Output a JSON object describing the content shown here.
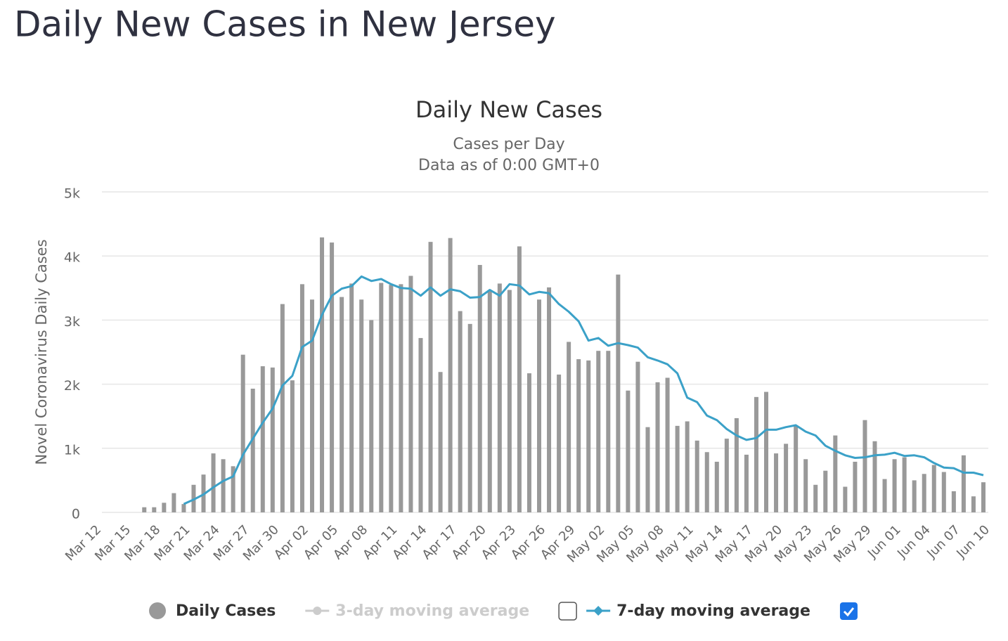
{
  "page_title": "Daily New Cases in New Jersey",
  "chart_data": {
    "type": "bar",
    "title": "Daily New Cases",
    "subtitle": [
      "Cases per Day",
      "Data as of 0:00 GMT+0"
    ],
    "y_label": "Novel Coronavirus Daily Cases",
    "categories": [
      "Mar 12",
      null,
      null,
      "Mar 15",
      null,
      null,
      "Mar 18",
      null,
      null,
      "Mar 21",
      null,
      null,
      "Mar 24",
      null,
      null,
      "Mar 27",
      null,
      null,
      "Mar 30",
      null,
      null,
      "Apr 02",
      null,
      null,
      "Apr 05",
      null,
      null,
      "Apr 08",
      null,
      null,
      "Apr 11",
      null,
      null,
      "Apr 14",
      null,
      null,
      "Apr 17",
      null,
      null,
      "Apr 20",
      null,
      null,
      "Apr 23",
      null,
      null,
      "Apr 26",
      null,
      null,
      "Apr 29",
      null,
      null,
      "May 02",
      null,
      null,
      "May 05",
      null,
      null,
      "May 08",
      null,
      null,
      "May 11",
      null,
      null,
      "May 14",
      null,
      null,
      "May 17",
      null,
      null,
      "May 20",
      null,
      null,
      "May 23",
      null,
      null,
      "May 26",
      null,
      null,
      "May 29",
      null,
      null,
      "Jun 01",
      null,
      null,
      "Jun 04",
      null,
      null,
      "Jun 07",
      null,
      null,
      "Jun 10"
    ],
    "series": [
      {
        "name": "Daily Cases",
        "type": "bar",
        "color": "#999999",
        "values": [
          0,
          0,
          0,
          0,
          0,
          80,
          80,
          150,
          300,
          130,
          430,
          590,
          920,
          830,
          720,
          2460,
          1930,
          2280,
          2260,
          3250,
          2060,
          3560,
          3320,
          4290,
          4210,
          3360,
          3570,
          3320,
          3000,
          3580,
          3550,
          3560,
          3690,
          2720,
          4220,
          2190,
          4280,
          3140,
          2940,
          3860,
          3450,
          3570,
          3470,
          4150,
          2170,
          3320,
          3510,
          2150,
          2660,
          2390,
          2370,
          2520,
          2520,
          3710,
          1900,
          2350,
          1330,
          2030,
          2100,
          1350,
          1420,
          1120,
          940,
          790,
          1150,
          1470,
          900,
          1800,
          1880,
          920,
          1070,
          1360,
          830,
          430,
          650,
          1200,
          400,
          790,
          1440,
          1110,
          520,
          830,
          860,
          500,
          600,
          740,
          630,
          330,
          890,
          250,
          470
        ]
      },
      {
        "name": "3-day moving average",
        "type": "line",
        "color": "#cccccc",
        "hidden": true,
        "checked": false
      },
      {
        "name": "7-day moving average",
        "type": "line",
        "color": "#3ba1c8",
        "checked": true,
        "values": [
          null,
          null,
          null,
          null,
          null,
          null,
          null,
          null,
          null,
          130,
          200,
          280,
          390,
          490,
          560,
          900,
          1150,
          1400,
          1620,
          1980,
          2130,
          2580,
          2680,
          3080,
          3380,
          3490,
          3530,
          3680,
          3610,
          3640,
          3560,
          3500,
          3490,
          3380,
          3510,
          3380,
          3480,
          3450,
          3350,
          3360,
          3470,
          3380,
          3560,
          3540,
          3400,
          3440,
          3420,
          3250,
          3130,
          2980,
          2680,
          2720,
          2600,
          2640,
          2610,
          2570,
          2420,
          2370,
          2310,
          2170,
          1790,
          1720,
          1510,
          1440,
          1300,
          1200,
          1130,
          1160,
          1290,
          1290,
          1330,
          1360,
          1260,
          1200,
          1040,
          960,
          890,
          850,
          860,
          890,
          900,
          930,
          880,
          890,
          860,
          770,
          700,
          690,
          620,
          620,
          580
        ]
      }
    ],
    "ylim": [
      0,
      5000
    ],
    "yticks": [
      0,
      {
        "value": 1000,
        "label": "1k"
      },
      {
        "value": 2000,
        "label": "2k"
      },
      {
        "value": 3000,
        "label": "3k"
      },
      {
        "value": 4000,
        "label": "4k"
      },
      {
        "value": 5000,
        "label": "5k"
      }
    ],
    "grid": true
  }
}
